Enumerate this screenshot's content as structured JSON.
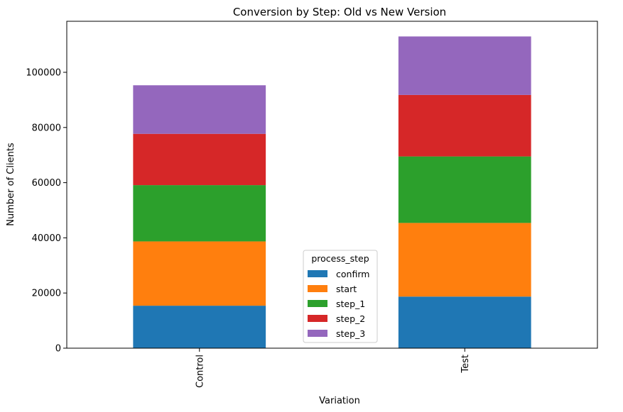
{
  "chart_data": {
    "type": "bar",
    "stacked": true,
    "title": "Conversion by Step: Old vs New Version",
    "xlabel": "Variation",
    "ylabel": "Number of Clients",
    "categories": [
      "Control",
      "Test"
    ],
    "ylim": [
      0,
      118500
    ],
    "yticks": [
      0,
      20000,
      40000,
      60000,
      80000,
      100000
    ],
    "grid": false,
    "legend": {
      "title": "process_step",
      "placement": "lower-center"
    },
    "series": [
      {
        "name": "confirm",
        "color": "#1f77b4",
        "values": [
          15400,
          18700
        ]
      },
      {
        "name": "start",
        "color": "#ff7f0e",
        "values": [
          23300,
          26700
        ]
      },
      {
        "name": "step_1",
        "color": "#2ca02c",
        "values": [
          20400,
          24100
        ]
      },
      {
        "name": "step_2",
        "color": "#d62728",
        "values": [
          18600,
          22300
        ]
      },
      {
        "name": "step_3",
        "color": "#9467bd",
        "values": [
          17600,
          21200
        ]
      }
    ]
  }
}
